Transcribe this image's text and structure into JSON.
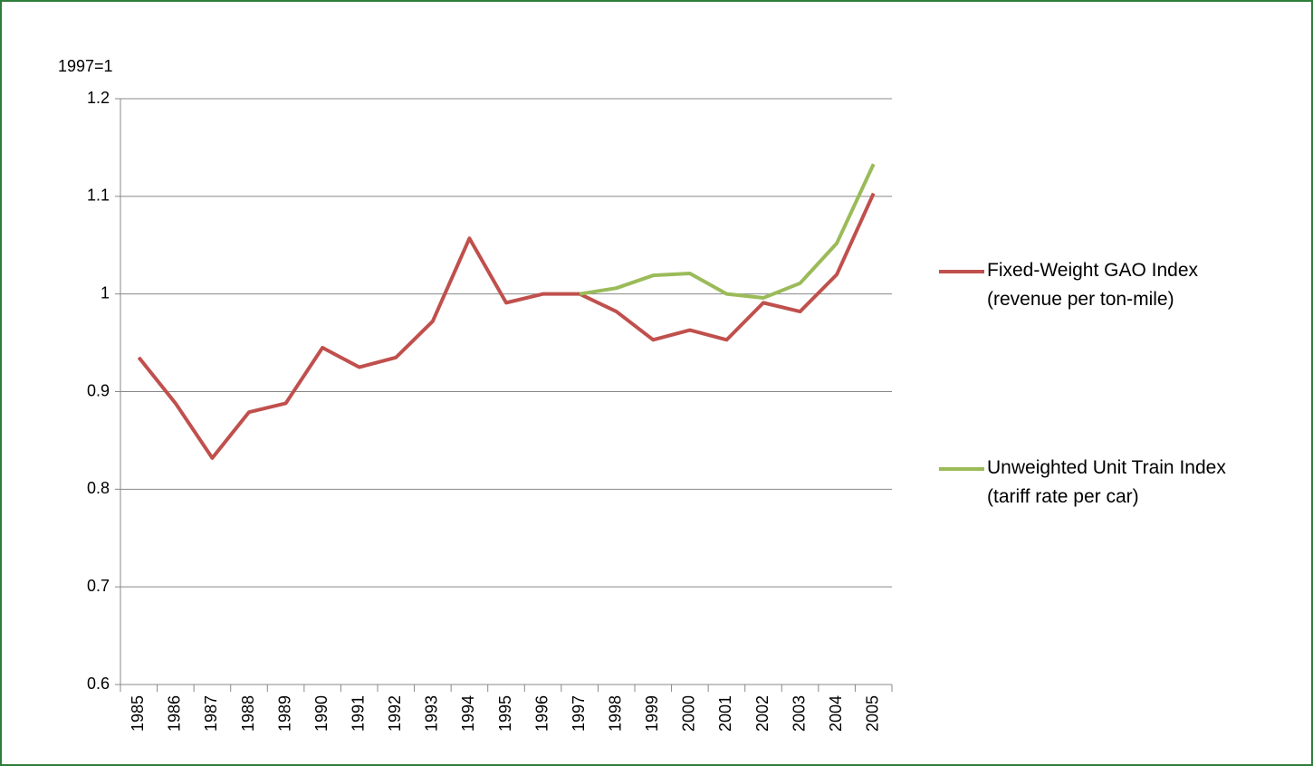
{
  "chart_data": {
    "type": "line",
    "ylabel": "1997=1",
    "categories": [
      "1985",
      "1986",
      "1987",
      "1988",
      "1989",
      "1990",
      "1991",
      "1992",
      "1993",
      "1994",
      "1995",
      "1996",
      "1997",
      "1998",
      "1999",
      "2000",
      "2001",
      "2002",
      "2003",
      "2004",
      "2005"
    ],
    "series": [
      {
        "name": "Fixed-Weight GAO Index (revenue per ton-mile)",
        "color": "#c0504d",
        "values": [
          0.935,
          0.888,
          0.832,
          0.879,
          0.888,
          0.945,
          0.925,
          0.935,
          0.972,
          1.057,
          0.991,
          1.0,
          1.0,
          0.982,
          0.953,
          0.963,
          0.953,
          0.991,
          0.982,
          1.02,
          1.103
        ]
      },
      {
        "name": "Unweighted Unit Train Index (tariff rate per car)",
        "color": "#9bbb59",
        "values": [
          null,
          null,
          null,
          null,
          null,
          null,
          null,
          null,
          null,
          null,
          null,
          null,
          1.0,
          1.006,
          1.019,
          1.021,
          1.0,
          0.996,
          1.011,
          1.052,
          1.133
        ]
      }
    ],
    "ylim": [
      0.6,
      1.2
    ],
    "yticks": [
      0.6,
      0.7,
      0.8,
      0.9,
      1,
      1.1,
      1.2
    ],
    "grid": true,
    "legend": "right"
  }
}
